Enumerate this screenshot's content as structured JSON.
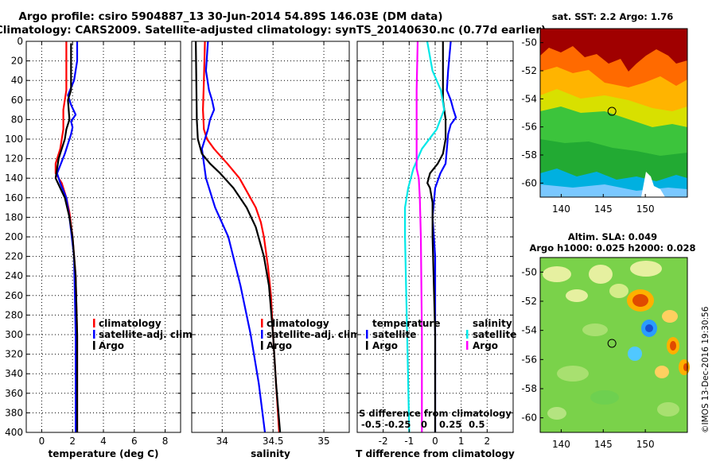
{
  "header": {
    "title_line1": "Argo profile: csiro 5904887_13 30-Jun-2014 54.89S 146.03E (DM data)",
    "title_line2": "Climatology: CARS2009. Satellite-adjusted climatology: synTS_20140630.nc (0.77d earlier)"
  },
  "colors": {
    "climatology": "#ff0000",
    "satellite": "#0000ff",
    "argo": "#000000",
    "sal_satellite": "#00e8e8",
    "sal_argo": "#ff00ff"
  },
  "chart_data": [
    {
      "type": "line",
      "name": "temperature",
      "xlabel": "temperature (deg C)",
      "ylabel": "",
      "xlim": [
        -1,
        9
      ],
      "ylim": [
        400,
        0
      ],
      "xticks": [
        0,
        2,
        4,
        6,
        8
      ],
      "xtick_labels": [
        "0",
        "2",
        "4",
        "6",
        "8"
      ],
      "yticks": [
        0,
        20,
        40,
        60,
        80,
        100,
        120,
        140,
        160,
        180,
        200,
        220,
        240,
        260,
        280,
        300,
        320,
        340,
        360,
        380,
        400
      ],
      "ytick_labels": [
        "0",
        "20",
        "40",
        "60",
        "80",
        "100",
        "120",
        "140",
        "160",
        "180",
        "200",
        "220",
        "240",
        "260",
        "280",
        "300",
        "320",
        "340",
        "360",
        "380",
        "400"
      ],
      "legend": [
        "climatology",
        "satellite-adj. clim.",
        "Argo"
      ],
      "series": [
        {
          "name": "climatology",
          "color": "#ff0000",
          "depth": [
            0,
            50,
            70,
            90,
            110,
            125,
            135,
            145,
            160,
            175,
            200,
            240,
            300,
            340,
            400
          ],
          "values": [
            1.6,
            1.6,
            1.4,
            1.4,
            1.2,
            0.9,
            0.9,
            1.3,
            1.6,
            1.8,
            2.0,
            2.2,
            2.3,
            2.3,
            2.3
          ]
        },
        {
          "name": "satellite-adj. clim.",
          "color": "#0000ff",
          "depth": [
            0,
            20,
            40,
            55,
            65,
            75,
            82,
            88,
            95,
            115,
            135,
            145,
            160,
            180,
            220,
            300,
            400
          ],
          "values": [
            2.3,
            2.3,
            2.1,
            1.7,
            1.9,
            2.2,
            1.9,
            2.0,
            1.9,
            1.5,
            1.0,
            1.2,
            1.6,
            1.8,
            2.1,
            2.2,
            2.2
          ]
        },
        {
          "name": "Argo",
          "color": "#000000",
          "depth": [
            2,
            50,
            60,
            80,
            90,
            100,
            110,
            120,
            130,
            140,
            150,
            160,
            180,
            200,
            240,
            300,
            400
          ],
          "values": [
            1.9,
            1.9,
            1.7,
            1.8,
            1.6,
            1.5,
            1.3,
            1.1,
            1.0,
            0.9,
            1.2,
            1.5,
            1.8,
            2.0,
            2.2,
            2.3,
            2.3
          ]
        }
      ]
    },
    {
      "type": "line",
      "name": "salinity",
      "xlabel": "salinity",
      "ylabel": "",
      "xlim": [
        33.7,
        35.25
      ],
      "ylim": [
        400,
        0
      ],
      "xticks": [
        34,
        34.5,
        35
      ],
      "xtick_labels": [
        "34",
        "34.5",
        "35"
      ],
      "legend": [
        "climatology",
        "satellite-adj. clim.",
        "Argo"
      ],
      "series": [
        {
          "name": "climatology",
          "color": "#ff0000",
          "depth": [
            0,
            40,
            70,
            90,
            100,
            110,
            125,
            140,
            155,
            170,
            185,
            200,
            230,
            260,
            300,
            350,
            400
          ],
          "values": [
            33.83,
            33.82,
            33.81,
            33.82,
            33.85,
            33.92,
            34.05,
            34.17,
            34.25,
            34.33,
            34.38,
            34.41,
            34.45,
            34.48,
            34.5,
            34.53,
            34.56
          ]
        },
        {
          "name": "satellite-adj. clim.",
          "color": "#0000ff",
          "depth": [
            0,
            30,
            50,
            60,
            70,
            80,
            90,
            100,
            110,
            140,
            170,
            200,
            250,
            300,
            350,
            400
          ],
          "values": [
            33.86,
            33.84,
            33.87,
            33.9,
            33.92,
            33.88,
            33.86,
            33.83,
            33.8,
            33.84,
            33.93,
            34.06,
            34.18,
            34.28,
            34.36,
            34.42
          ]
        },
        {
          "name": "Argo",
          "color": "#000000",
          "depth": [
            0,
            80,
            100,
            115,
            125,
            135,
            150,
            170,
            190,
            220,
            250,
            300,
            350,
            400
          ],
          "values": [
            33.74,
            33.75,
            33.76,
            33.8,
            33.88,
            33.98,
            34.11,
            34.24,
            34.33,
            34.41,
            34.46,
            34.5,
            34.53,
            34.57
          ]
        }
      ]
    },
    {
      "type": "line",
      "name": "difference from climatology",
      "xlabel": "T difference from climatology",
      "xlabel_top": "S difference from climatology",
      "xlim": [
        -3,
        3
      ],
      "ylim": [
        400,
        0
      ],
      "xticks": [
        -2,
        -1,
        0,
        1,
        2
      ],
      "xtick_labels": [
        "-2",
        "-1",
        "0",
        "1",
        "2"
      ],
      "sticks": [
        -0.5,
        -0.25,
        0,
        0.25,
        0.5
      ],
      "stick_labels": [
        "-0.5",
        "-0.25",
        "0",
        "0.25",
        "0.5"
      ],
      "legend_temperature_title": "temperature",
      "legend_salinity_title": "salinity",
      "legend_temperature": [
        "satellite",
        "Argo"
      ],
      "legend_salinity": [
        "satellite",
        "Argo"
      ],
      "series": [
        {
          "name": "T satellite",
          "color": "#0000ff",
          "depth": [
            0,
            30,
            50,
            60,
            70,
            78,
            85,
            95,
            110,
            125,
            135,
            150,
            180,
            220,
            300,
            400
          ],
          "values": [
            0.6,
            0.5,
            0.45,
            0.6,
            0.7,
            0.8,
            0.6,
            0.5,
            0.45,
            0.4,
            0.2,
            0.0,
            -0.1,
            0.0,
            0.0,
            0.0
          ]
        },
        {
          "name": "T Argo",
          "color": "#000000",
          "depth": [
            0,
            60,
            80,
            100,
            115,
            125,
            135,
            145,
            150,
            165,
            200,
            300,
            400
          ],
          "values": [
            0.3,
            0.3,
            0.4,
            0.4,
            0.3,
            0.1,
            -0.2,
            -0.3,
            -0.2,
            -0.1,
            -0.1,
            0.0,
            0.0
          ]
        },
        {
          "name": "S satellite",
          "color": "#00e8e8",
          "depth": [
            0,
            30,
            50,
            70,
            90,
            110,
            130,
            150,
            170,
            200,
            250,
            300,
            350,
            400
          ],
          "values": [
            0.03,
            0.08,
            0.16,
            0.19,
            0.12,
            -0.02,
            -0.1,
            -0.15,
            -0.18,
            -0.18,
            -0.17,
            -0.16,
            -0.15,
            -0.14
          ]
        },
        {
          "name": "S Argo",
          "color": "#ff00ff",
          "depth": [
            0,
            50,
            100,
            130,
            140,
            160,
            200,
            300,
            400
          ],
          "values": [
            -0.06,
            -0.07,
            -0.07,
            -0.07,
            -0.05,
            -0.04,
            -0.03,
            -0.02,
            -0.02
          ]
        }
      ]
    },
    {
      "type": "heatmap",
      "name": "sst map",
      "title": "sat. SST: 2.2 Argo: 1.76",
      "xlim": [
        137.5,
        155
      ],
      "ylim": [
        -61,
        -49
      ],
      "xticks": [
        140,
        145,
        150
      ],
      "xtick_labels": [
        "140",
        "145",
        "150"
      ],
      "yticks": [
        -50,
        -52,
        -54,
        -56,
        -58,
        -60
      ],
      "ytick_labels": [
        "-50",
        "-52",
        "-54",
        "-56",
        "-58",
        "-60"
      ],
      "argo_position": [
        146.03,
        -54.89
      ]
    },
    {
      "type": "heatmap",
      "name": "sla map",
      "title_line1": "Altim. SLA: 0.049",
      "title_line2": "Argo h1000: 0.025 h2000: 0.028",
      "xlim": [
        137.5,
        155
      ],
      "ylim": [
        -61,
        -49
      ],
      "xticks": [
        140,
        145,
        150
      ],
      "xtick_labels": [
        "140",
        "145",
        "150"
      ],
      "yticks": [
        -50,
        -52,
        -54,
        -56,
        -58,
        -60
      ],
      "ytick_labels": [
        "-50",
        "-52",
        "-54",
        "-56",
        "-58",
        "-60"
      ],
      "argo_position": [
        146.03,
        -54.89
      ]
    }
  ],
  "footer": {
    "credit": "©IMOS 13-Dec-2016 19:30:56"
  }
}
